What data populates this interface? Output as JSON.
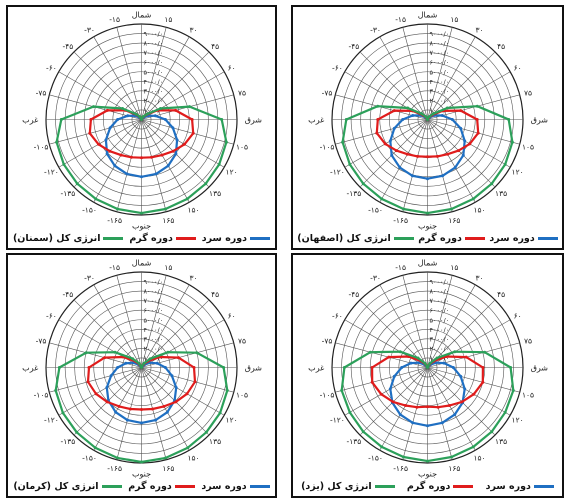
{
  "directions": {
    "north": "شمال",
    "south": "جنوب",
    "east": "شرق",
    "west": "غرب"
  },
  "series_styles": [
    {
      "key": "total",
      "color": "#2ca05a"
    },
    {
      "key": "hot",
      "color": "#e01c1c"
    },
    {
      "key": "cold",
      "color": "#1f6fc2"
    }
  ],
  "chart_data": [
    {
      "type": "polar-line",
      "angle_tick_labels": [
        "۱۵",
        "۳۰",
        "۴۵",
        "۶۰",
        "۷۵",
        "۱۰۵",
        "۱۲۰",
        "۱۳۵",
        "۱۵۰",
        "۱۶۵",
        "-۱۶۵",
        "-۱۵۰",
        "-۱۳۵",
        "-۱۲۰",
        "-۱۰۵",
        "-۷۵",
        "-۶۰",
        "-۴۵",
        "-۳۰",
        "-۱۵"
      ],
      "radial_tick_labels": [
        "۱۰۰۰/۰",
        "۲۰۰۰/۰",
        "۳۰۰۰/۰",
        "۴۰۰۰/۰",
        "۵۰۰۰/۰",
        "۶۰۰۰/۰",
        "۷۰۰۰/۰",
        "۸۰۰۰/۰",
        "۹۰۰۰/۰"
      ],
      "rlim": [
        0,
        10000
      ],
      "angles": [
        -180,
        -165,
        -150,
        -135,
        -120,
        -105,
        -90,
        -75,
        -60,
        -45,
        -30,
        -15,
        0,
        15,
        30,
        45,
        60,
        75,
        90,
        105,
        120,
        135,
        150,
        165
      ],
      "series": [
        {
          "name": "انرژی کل (سمنان)",
          "values": [
            9800,
            9700,
            9600,
            9500,
            9400,
            9200,
            8400,
            5200,
            2300,
            800,
            350,
            120,
            0,
            120,
            350,
            800,
            2300,
            5200,
            8400,
            9200,
            9400,
            9500,
            9600,
            9700
          ]
        },
        {
          "name": "دوره گرم",
          "values": [
            4000,
            4100,
            4300,
            4700,
            5200,
            5600,
            5300,
            3700,
            1900,
            700,
            250,
            80,
            0,
            80,
            250,
            700,
            1900,
            3700,
            5300,
            5600,
            5200,
            4700,
            4300,
            4100
          ]
        },
        {
          "name": "دوره سرد",
          "values": [
            6000,
            5900,
            5600,
            5100,
            4300,
            3400,
            2500,
            1500,
            800,
            300,
            120,
            40,
            0,
            40,
            120,
            300,
            800,
            1500,
            2500,
            3400,
            4300,
            5100,
            5600,
            5900
          ]
        }
      ]
    },
    {
      "type": "polar-line",
      "angle_tick_labels": [
        "۱۵",
        "۳۰",
        "۴۵",
        "۶۰",
        "۷۵",
        "۱۰۵",
        "۱۲۰",
        "۱۳۵",
        "۱۵۰",
        "۱۶۵",
        "-۱۶۵",
        "-۱۵۰",
        "-۱۳۵",
        "-۱۲۰",
        "-۱۰۵",
        "-۷۵",
        "-۶۰",
        "-۴۵",
        "-۳۰",
        "-۱۵"
      ],
      "radial_tick_labels": [
        "۱۰۰۰/۰",
        "۲۰۰۰/۰",
        "۳۰۰۰/۰",
        "۴۰۰۰/۰",
        "۵۰۰۰/۰",
        "۶۰۰۰/۰",
        "۷۰۰۰/۰",
        "۸۰۰۰/۰",
        "۹۰۰۰/۰"
      ],
      "rlim": [
        0,
        10000
      ],
      "angles": [
        -180,
        -165,
        -150,
        -135,
        -120,
        -105,
        -90,
        -75,
        -60,
        -45,
        -30,
        -15,
        0,
        15,
        30,
        45,
        60,
        75,
        90,
        105,
        120,
        135,
        150,
        165
      ],
      "series": [
        {
          "name": "انرژی کل (اصفهان)",
          "values": [
            9800,
            9700,
            9600,
            9500,
            9400,
            9200,
            8500,
            5400,
            2400,
            850,
            350,
            120,
            0,
            120,
            350,
            850,
            2400,
            5400,
            8500,
            9200,
            9400,
            9500,
            9600,
            9700
          ]
        },
        {
          "name": "دوره گرم",
          "values": [
            3900,
            4000,
            4200,
            4600,
            5100,
            5500,
            5200,
            3600,
            1800,
            650,
            230,
            80,
            0,
            80,
            230,
            650,
            1800,
            3600,
            5200,
            5500,
            5100,
            4600,
            4200,
            4000
          ]
        },
        {
          "name": "دوره سرد",
          "values": [
            6200,
            6100,
            5800,
            5300,
            4500,
            3600,
            2600,
            1600,
            850,
            320,
            120,
            40,
            0,
            40,
            120,
            320,
            850,
            1600,
            2600,
            3600,
            4500,
            5300,
            5800,
            6100
          ]
        }
      ]
    },
    {
      "type": "polar-line",
      "angle_tick_labels": [
        "۱۵",
        "۳۰",
        "۴۵",
        "۶۰",
        "۷۵",
        "۱۰۵",
        "۱۲۰",
        "۱۳۵",
        "۱۵۰",
        "۱۶۵",
        "-۱۶۵",
        "-۱۵۰",
        "-۱۳۵",
        "-۱۲۰",
        "-۱۰۵",
        "-۷۵",
        "-۶۰",
        "-۴۵",
        "-۳۰",
        "-۱۵"
      ],
      "radial_tick_labels": [
        "۱۰۰۰/۰",
        "۲۰۰۰/۰",
        "۳۰۰۰/۰",
        "۴۰۰۰/۰",
        "۵۰۰۰/۰",
        "۶۰۰۰/۰",
        "۷۰۰۰/۰",
        "۸۰۰۰/۰",
        "۹۰۰۰/۰"
      ],
      "rlim": [
        0,
        10000
      ],
      "angles": [
        -180,
        -165,
        -150,
        -135,
        -120,
        -105,
        -90,
        -75,
        -60,
        -45,
        -30,
        -15,
        0,
        15,
        30,
        45,
        60,
        75,
        90,
        105,
        120,
        135,
        150,
        165
      ],
      "series": [
        {
          "name": "انرژی کل (کرمان)",
          "values": [
            9900,
            9800,
            9700,
            9600,
            9500,
            9300,
            8600,
            6000,
            3200,
            1300,
            500,
            150,
            0,
            150,
            500,
            1300,
            3200,
            6000,
            8600,
            9300,
            9500,
            9600,
            9700,
            9800
          ]
        },
        {
          "name": "دوره گرم",
          "values": [
            4400,
            4500,
            4700,
            5100,
            5500,
            5800,
            5500,
            4000,
            2200,
            900,
            350,
            100,
            0,
            100,
            350,
            900,
            2200,
            4000,
            5500,
            5800,
            5500,
            5100,
            4700,
            4500
          ]
        },
        {
          "name": "دوره سرد",
          "values": [
            5800,
            5700,
            5400,
            4900,
            4200,
            3300,
            2500,
            1700,
            1000,
            420,
            160,
            50,
            0,
            50,
            160,
            420,
            1000,
            1700,
            2500,
            3300,
            4200,
            4900,
            5400,
            5700
          ]
        }
      ]
    },
    {
      "type": "polar-line",
      "angle_tick_labels": [
        "۱۵",
        "۳۰",
        "۴۵",
        "۶۰",
        "۷۵",
        "۱۰۵",
        "۱۲۰",
        "۱۳۵",
        "۱۵۰",
        "۱۶۵",
        "-۱۶۵",
        "-۱۵۰",
        "-۱۳۵",
        "-۱۲۰",
        "-۱۰۵",
        "-۷۵",
        "-۶۰",
        "-۴۵",
        "-۳۰",
        "-۱۵"
      ],
      "radial_tick_labels": [
        "۱۰۰۰/۰",
        "۲۰۰۰/۰",
        "۳۰۰۰/۰",
        "۴۰۰۰/۰",
        "۵۰۰۰/۰",
        "۶۰۰۰/۰",
        "۷۰۰۰/۰",
        "۸۰۰۰/۰",
        "۹۰۰۰/۰"
      ],
      "rlim": [
        0,
        10000
      ],
      "angles": [
        -180,
        -165,
        -150,
        -135,
        -120,
        -105,
        -90,
        -75,
        -60,
        -45,
        -30,
        -15,
        0,
        15,
        30,
        45,
        60,
        75,
        90,
        105,
        120,
        135,
        150,
        165
      ],
      "series": [
        {
          "name": "انرژی کل (یزد)",
          "values": [
            9800,
            9700,
            9600,
            9500,
            9400,
            9300,
            8700,
            6200,
            3300,
            1400,
            500,
            150,
            0,
            150,
            500,
            1400,
            3300,
            6200,
            8700,
            9300,
            9400,
            9500,
            9600,
            9700
          ]
        },
        {
          "name": "دوره گرم",
          "values": [
            4100,
            4300,
            4600,
            5100,
            5600,
            6000,
            5800,
            4200,
            2300,
            950,
            350,
            100,
            0,
            100,
            350,
            950,
            2300,
            4200,
            5800,
            6000,
            5600,
            5100,
            4600,
            4300
          ]
        },
        {
          "name": "دوره سرد",
          "values": [
            6100,
            6000,
            5700,
            5200,
            4500,
            3600,
            2700,
            1800,
            1000,
            420,
            160,
            50,
            0,
            50,
            160,
            420,
            1000,
            1800,
            2700,
            3600,
            4500,
            5200,
            5700,
            6000
          ]
        }
      ]
    }
  ]
}
